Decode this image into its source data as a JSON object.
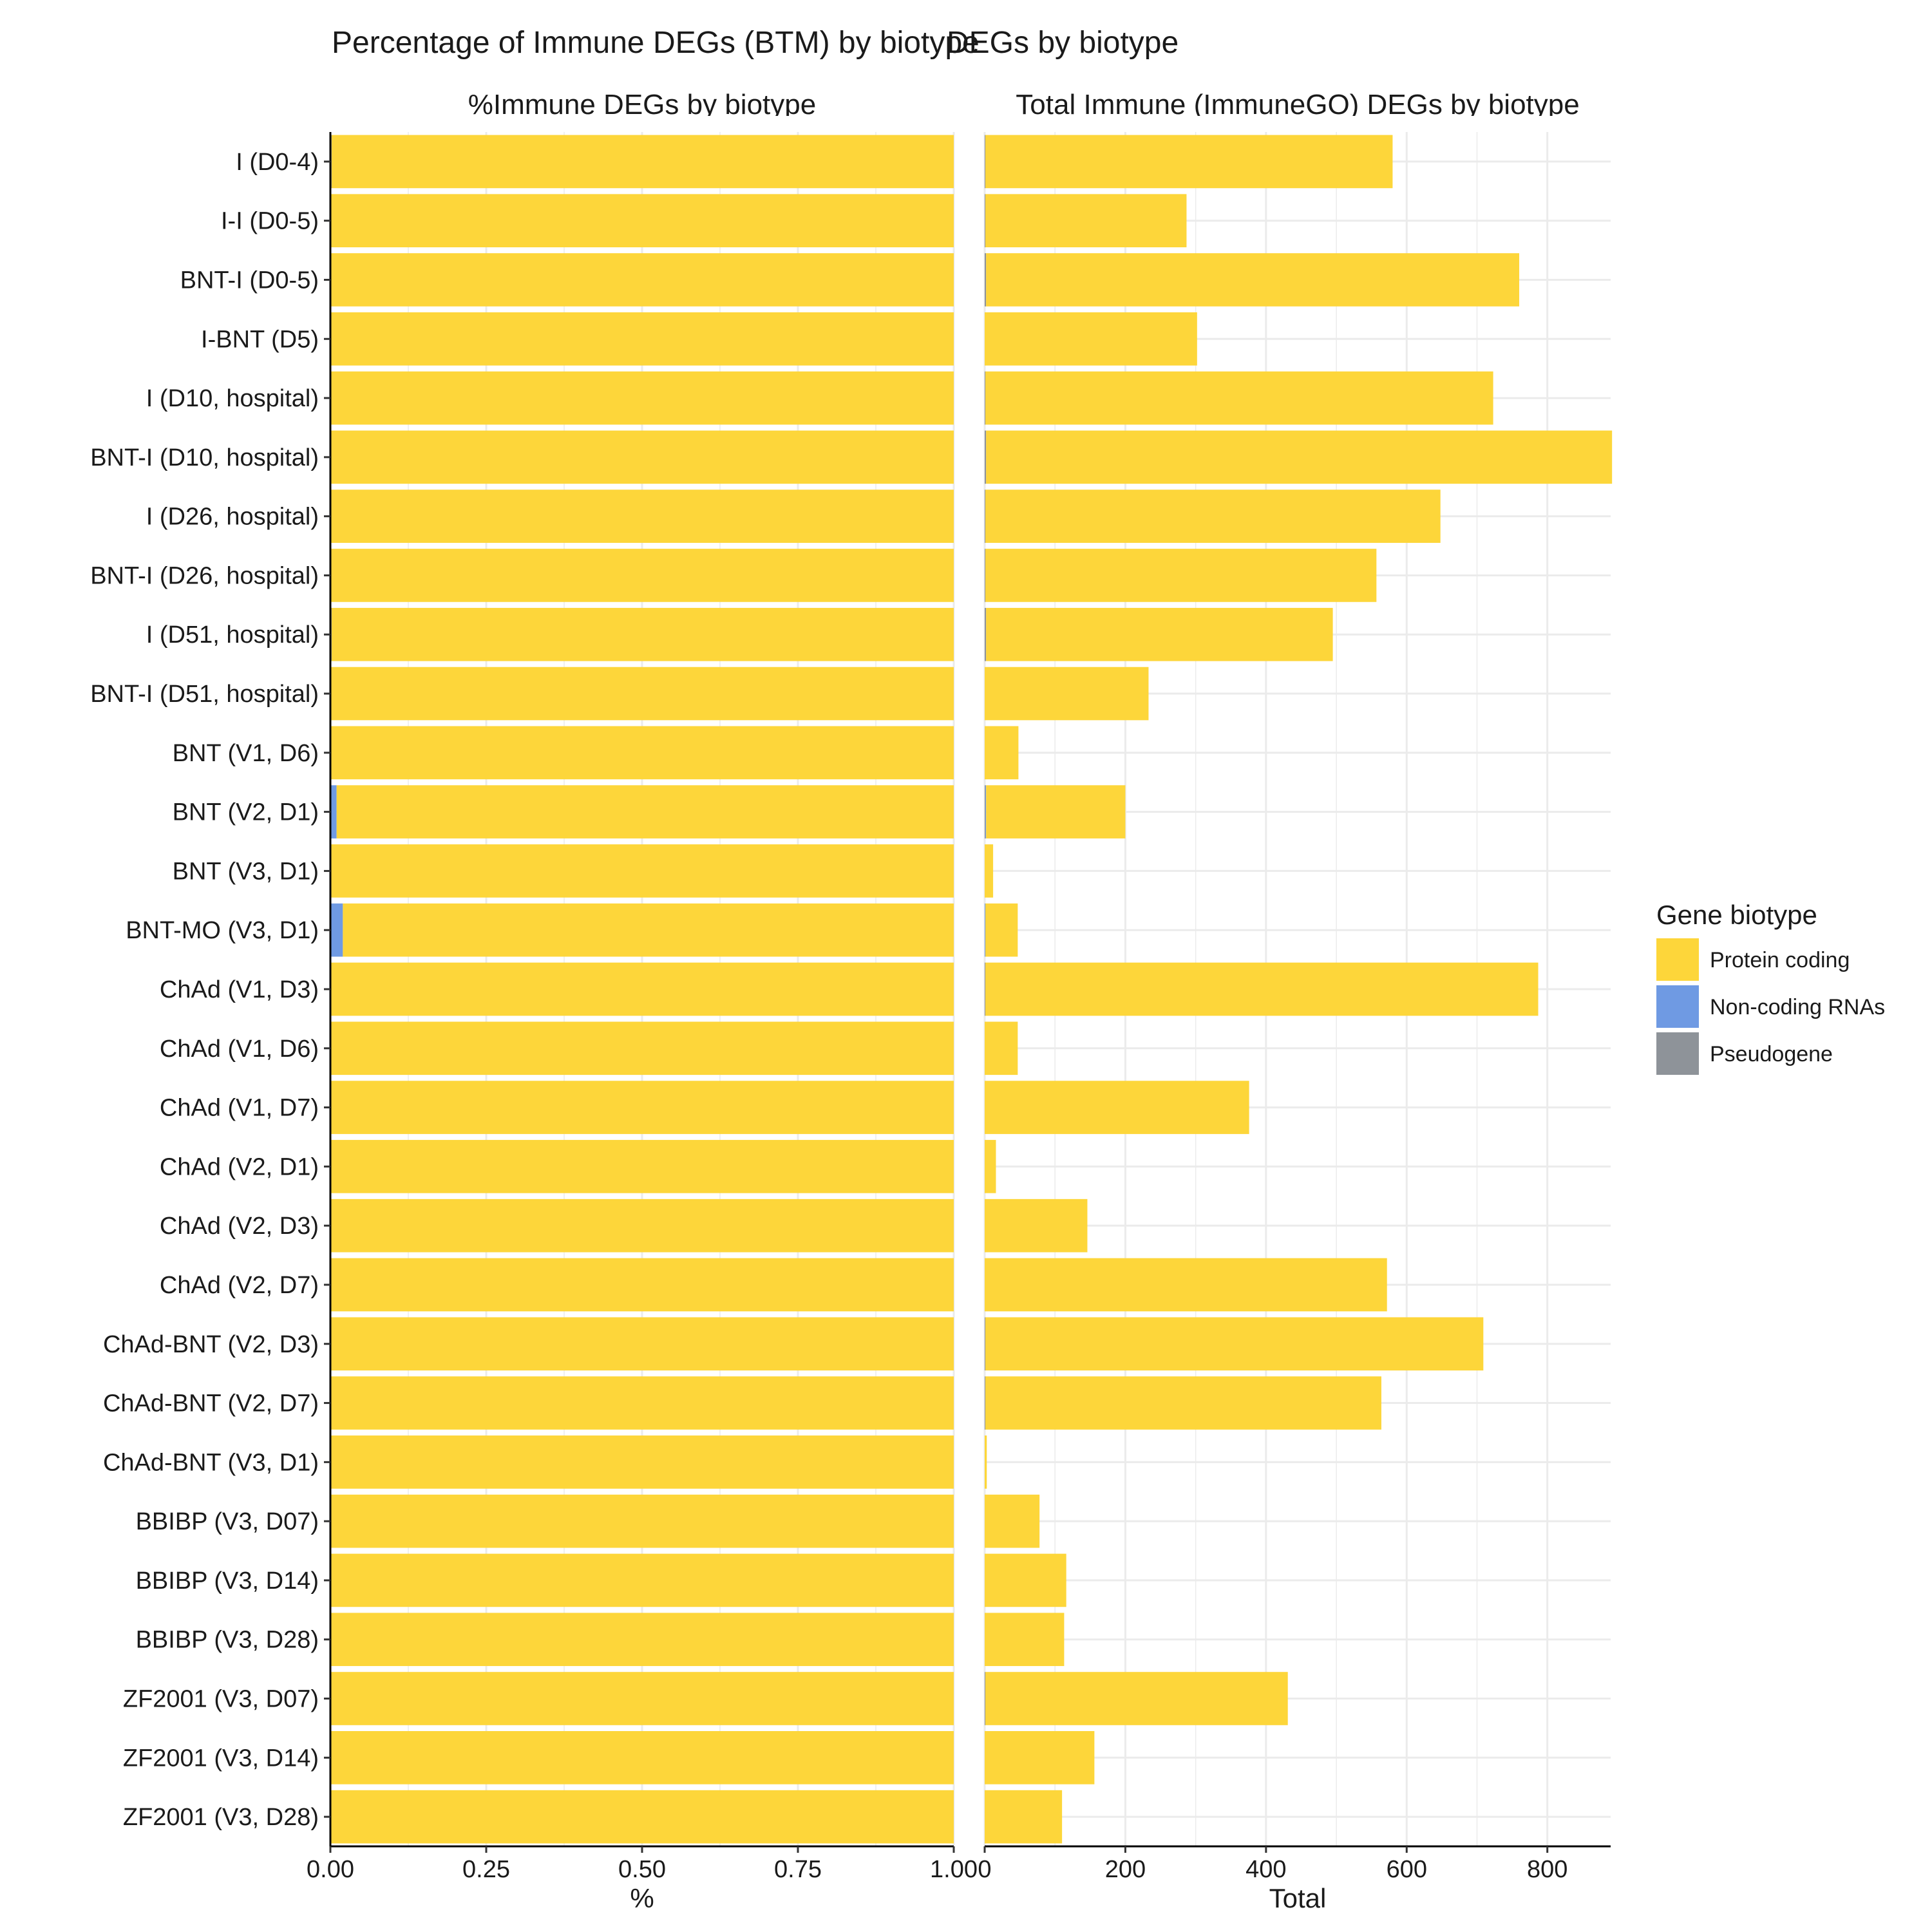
{
  "titles": {
    "title_a": "Percentage of Immune DEGs (BTM) by biotype",
    "title_b": "DEGs by biotype"
  },
  "legend": {
    "title": "Gene biotype",
    "position": "right",
    "items": [
      {
        "label": "Protein coding",
        "color": "#FDD63A"
      },
      {
        "label": "Non-coding RNAs",
        "color": "#6F9AE3"
      },
      {
        "label": "Pseudogene",
        "color": "#8E9399"
      }
    ]
  },
  "chart_data": [
    {
      "type": "bar",
      "orientation": "horizontal",
      "stacked": true,
      "title": "%Immune DEGs by biotype",
      "xlabel": "%",
      "ylabel": "",
      "xlim": [
        0,
        1.0
      ],
      "x_ticks": [
        "0.00",
        "0.25",
        "0.50",
        "0.75",
        "1.00"
      ],
      "grid": true,
      "categories": [
        "I (D0-4)",
        "I-I (D0-5)",
        "BNT-I (D0-5)",
        "I-BNT (D5)",
        "I (D10, hospital)",
        "BNT-I (D10, hospital)",
        "I (D26, hospital)",
        "BNT-I (D26, hospital)",
        "I (D51, hospital)",
        "BNT-I (D51, hospital)",
        "BNT (V1, D6)",
        "BNT (V2, D1)",
        "BNT (V3, D1)",
        "BNT-MO (V3, D1)",
        "ChAd (V1, D3)",
        "ChAd (V1, D6)",
        "ChAd (V1, D7)",
        "ChAd (V2, D1)",
        "ChAd (V2, D3)",
        "ChAd (V2, D7)",
        "ChAd-BNT (V2, D3)",
        "ChAd-BNT (V2, D7)",
        "ChAd-BNT (V3, D1)",
        "BBIBP (V3, D07)",
        "BBIBP (V3, D14)",
        "BBIBP (V3, D28)",
        "ZF2001 (V3, D07)",
        "ZF2001 (V3, D14)",
        "ZF2001 (V3, D28)"
      ],
      "series": [
        {
          "name": "Pseudogene",
          "values": [
            0.002,
            0,
            0,
            0,
            0,
            0,
            0,
            0,
            0.002,
            0,
            0,
            0,
            0,
            0,
            0,
            0,
            0,
            0,
            0,
            0,
            0,
            0,
            0,
            0,
            0,
            0,
            0,
            0,
            0
          ]
        },
        {
          "name": "Non-coding RNAs",
          "values": [
            0,
            0,
            0,
            0,
            0,
            0,
            0,
            0,
            0,
            0,
            0,
            0.01,
            0,
            0.02,
            0,
            0,
            0,
            0,
            0,
            0,
            0,
            0,
            0,
            0,
            0,
            0,
            0,
            0,
            0
          ]
        },
        {
          "name": "Protein coding",
          "values": [
            0.998,
            1,
            1,
            1,
            1,
            1,
            1,
            1,
            0.998,
            1,
            1,
            0.99,
            1,
            0.98,
            1,
            1,
            1,
            1,
            1,
            1,
            1,
            1,
            1,
            1,
            1,
            1,
            1,
            1,
            1
          ]
        }
      ]
    },
    {
      "type": "bar",
      "orientation": "horizontal",
      "stacked": true,
      "title": "Total Immune (ImmuneGO) DEGs by biotype",
      "xlabel": "Total",
      "ylabel": "",
      "xlim": [
        0,
        890
      ],
      "x_ticks": [
        "0",
        "200",
        "400",
        "600",
        "800"
      ],
      "grid": true,
      "categories": [
        "I (D0-4)",
        "I-I (D0-5)",
        "BNT-I (D0-5)",
        "I-BNT (D5)",
        "I (D10, hospital)",
        "BNT-I (D10, hospital)",
        "I (D26, hospital)",
        "BNT-I (D26, hospital)",
        "I (D51, hospital)",
        "BNT-I (D51, hospital)",
        "BNT (V1, D6)",
        "BNT (V2, D1)",
        "BNT (V3, D1)",
        "BNT-MO (V3, D1)",
        "ChAd (V1, D3)",
        "ChAd (V1, D6)",
        "ChAd (V1, D7)",
        "ChAd (V2, D1)",
        "ChAd (V2, D3)",
        "ChAd (V2, D7)",
        "ChAd-BNT (V2, D3)",
        "ChAd-BNT (V2, D7)",
        "ChAd-BNT (V3, D1)",
        "BBIBP (V3, D07)",
        "BBIBP (V3, D14)",
        "BBIBP (V3, D28)",
        "ZF2001 (V3, D07)",
        "ZF2001 (V3, D14)",
        "ZF2001 (V3, D28)"
      ],
      "series": [
        {
          "name": "Pseudogene",
          "values": [
            1,
            1,
            2,
            0,
            1,
            2,
            1,
            1,
            2,
            0,
            0,
            1,
            0,
            0,
            1,
            0,
            0,
            0,
            0,
            0,
            1,
            1,
            0,
            0,
            0,
            0,
            1,
            0,
            0
          ]
        },
        {
          "name": "Non-coding RNAs",
          "values": [
            0,
            0,
            0,
            0,
            0,
            0,
            0,
            0,
            0,
            0,
            0,
            1,
            0,
            1,
            0,
            0,
            0,
            0,
            0,
            0,
            0,
            0,
            0,
            0,
            0,
            0,
            0,
            0,
            0
          ]
        },
        {
          "name": "Protein coding",
          "values": [
            579,
            286,
            758,
            302,
            722,
            890,
            647,
            556,
            493,
            233,
            48,
            198,
            12,
            46,
            786,
            47,
            376,
            16,
            146,
            572,
            708,
            563,
            3,
            78,
            116,
            113,
            430,
            156,
            110
          ]
        }
      ]
    }
  ]
}
